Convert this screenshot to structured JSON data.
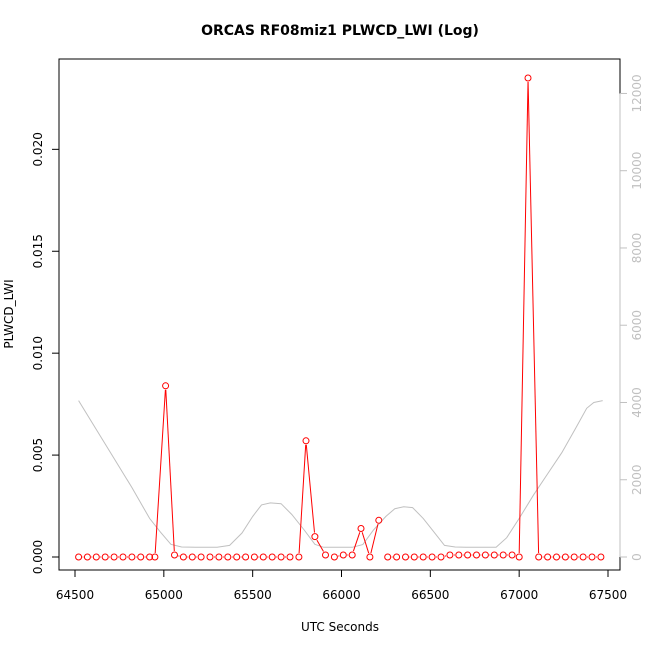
{
  "chart_data": {
    "type": "line",
    "title": "ORCAS RF08miz1 PLWCD_LWI (Log)",
    "xlabel": "UTC Seconds",
    "ylabel": "PLWCD_LWI",
    "xlim": [
      64500,
      67500
    ],
    "ylim": [
      0,
      0.0235
    ],
    "y2lim": [
      0,
      12400
    ],
    "x_ticks": [
      64500,
      65000,
      65500,
      66000,
      66500,
      67000,
      67500
    ],
    "x_tick_labels": [
      "64500",
      "65000",
      "65500",
      "66000",
      "66500",
      "67000",
      "67500"
    ],
    "y_ticks": [
      0,
      0.005,
      0.01,
      0.015,
      0.02
    ],
    "y_tick_labels": [
      "0.000",
      "0.005",
      "0.010",
      "0.015",
      "0.020"
    ],
    "y2_ticks": [
      0,
      2000,
      4000,
      6000,
      8000,
      10000,
      12000
    ],
    "y2_tick_labels": [
      "0",
      "2000",
      "4000",
      "6000",
      "8000",
      "10000",
      "12000"
    ],
    "grid": false,
    "series": [
      {
        "color": "#ff0000",
        "axis": "left",
        "style": "line-with-circle-markers",
        "x": [
          64520,
          64570,
          64620,
          64670,
          64720,
          64770,
          64820,
          64870,
          64920,
          64950,
          65010,
          65060,
          65110,
          65160,
          65210,
          65260,
          65310,
          65360,
          65410,
          65460,
          65510,
          65560,
          65610,
          65660,
          65710,
          65760,
          65800,
          65850,
          65910,
          65960,
          66010,
          66060,
          66110,
          66160,
          66210,
          66260,
          66310,
          66360,
          66410,
          66460,
          66510,
          66560,
          66610,
          66660,
          66710,
          66760,
          66810,
          66860,
          66910,
          66960,
          67000,
          67050,
          67110,
          67160,
          67210,
          67260,
          67310,
          67360,
          67410,
          67460
        ],
        "values": [
          0,
          0,
          0,
          0,
          0,
          0,
          0,
          0,
          0,
          0,
          0.0084,
          0.0001,
          0,
          0,
          0,
          0,
          0,
          0,
          0,
          0,
          0,
          0,
          0,
          0,
          0,
          0,
          0.0057,
          0.001,
          0.0001,
          0,
          0.0001,
          0.0001,
          0.0014,
          0,
          0.0018,
          0,
          0,
          0,
          0,
          0,
          0,
          0,
          0.0001,
          0.0001,
          0.0001,
          0.0001,
          0.0001,
          0.0001,
          0.0001,
          0.0001,
          0,
          0.0235,
          0,
          0,
          0,
          0,
          0,
          0,
          0,
          0
        ],
        "breaks": [
          [
            64920,
            64950
          ],
          [
            65210,
            65260
          ],
          [
            65460,
            65510
          ],
          [
            65710,
            65760
          ],
          [
            65910,
            65960
          ],
          [
            66210,
            66260
          ],
          [
            66310,
            66360
          ],
          [
            66960,
            67000
          ]
        ]
      },
      {
        "color": "#c0c0c0",
        "axis": "right",
        "style": "line",
        "x": [
          64520,
          64620,
          64720,
          64820,
          64920,
          64980,
          65040,
          65100,
          65180,
          65260,
          65300,
          65370,
          65440,
          65500,
          65550,
          65600,
          65660,
          65720,
          65790,
          65850,
          65900,
          65950,
          66000,
          66060,
          66120,
          66180,
          66250,
          66300,
          66350,
          66400,
          66460,
          66520,
          66580,
          66640,
          66700,
          66760,
          66820,
          66870,
          66930,
          67000,
          67080,
          67160,
          67240,
          67320,
          67380,
          67420,
          67470
        ],
        "values": [
          4050,
          3300,
          2550,
          1800,
          1000,
          650,
          330,
          260,
          250,
          250,
          250,
          300,
          620,
          1050,
          1350,
          1400,
          1380,
          1100,
          700,
          330,
          250,
          250,
          250,
          250,
          320,
          700,
          1050,
          1250,
          1300,
          1280,
          1000,
          650,
          300,
          260,
          250,
          250,
          250,
          250,
          500,
          1000,
          1600,
          2150,
          2700,
          3350,
          3850,
          4000,
          4050
        ]
      }
    ]
  }
}
